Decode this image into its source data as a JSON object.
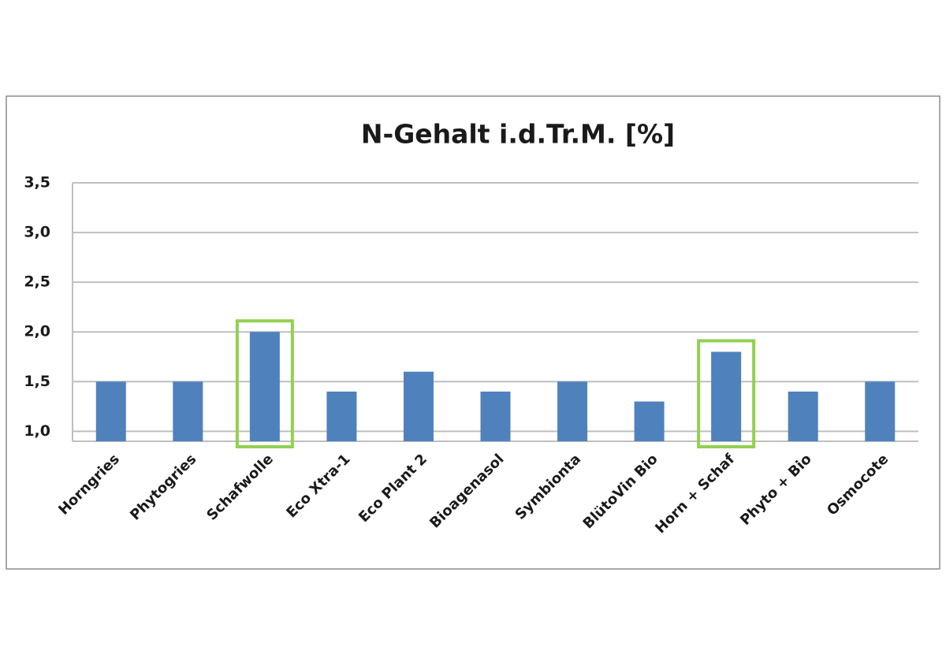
{
  "chart_data": {
    "type": "bar",
    "title": "N-Gehalt i.d.Tr.M. [%]",
    "categories": [
      "Horngries",
      "Phytogries",
      "Schafwolle",
      "Eco Xtra-1",
      "Eco Plant 2",
      "Bioagenasol",
      "Symbionta",
      "BlütoVin Bio",
      "Horn + Schaf",
      "Phyto + Bio",
      "Osmocote"
    ],
    "values": [
      1.5,
      1.5,
      2.0,
      1.4,
      1.6,
      1.4,
      1.5,
      1.3,
      1.8,
      1.4,
      1.5
    ],
    "color": "#4f81bd",
    "ylim": [
      0.9,
      3.5
    ],
    "yticks": [
      {
        "value": 1,
        "label": "1,0"
      },
      {
        "value": 1.5,
        "label": "1,5"
      },
      {
        "value": 2,
        "label": "2,0"
      },
      {
        "value": 2.5,
        "label": "2,5"
      },
      {
        "value": 3,
        "label": "3,0"
      },
      {
        "value": 3.5,
        "label": "3,5"
      }
    ],
    "grid": true,
    "highlight": [
      2,
      8
    ],
    "highlight_color": "#92d050"
  }
}
